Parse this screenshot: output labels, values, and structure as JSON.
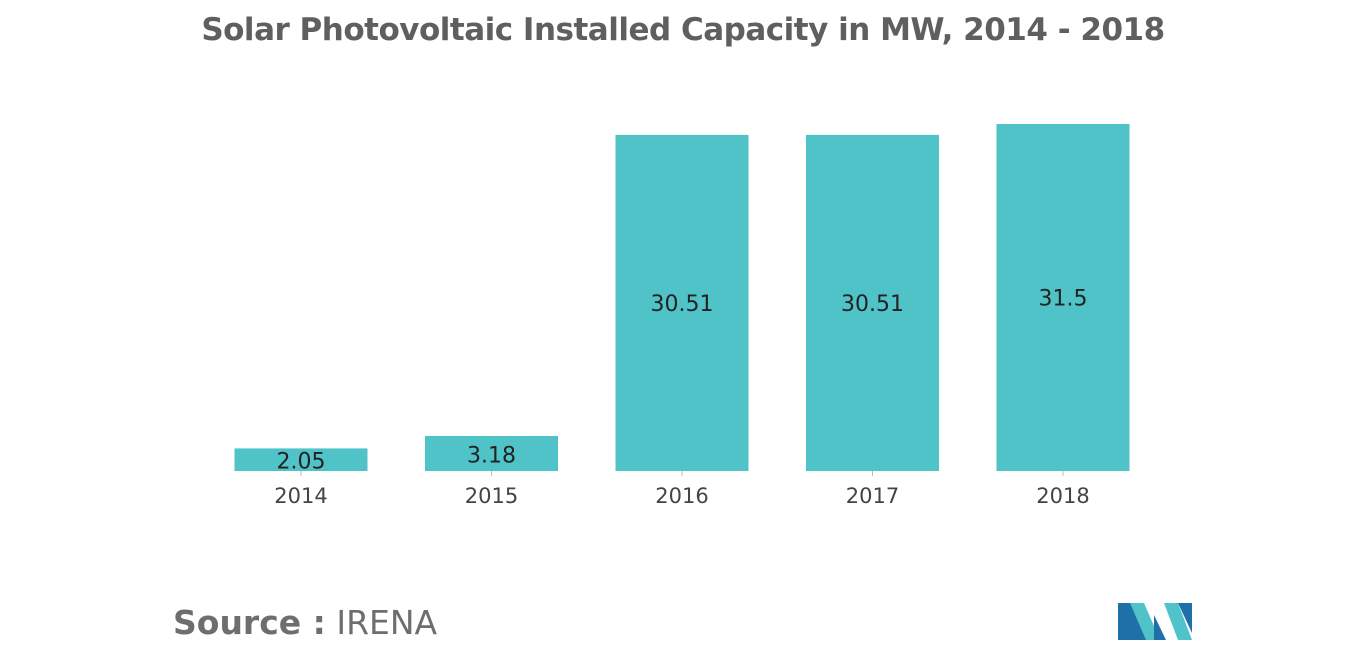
{
  "title": "Solar Photovoltaic Installed Capacity in MW, 2014 - 2018",
  "source": {
    "label": "Source :",
    "name": "IRENA"
  },
  "logo": {
    "icon": "mordor-intelligence-logo-icon",
    "colors": [
      "#1f6fa8",
      "#4fc3c9"
    ]
  },
  "chart_data": {
    "type": "bar",
    "title": "Solar Photovoltaic Installed Capacity in MW, 2014 - 2018",
    "categories": [
      "2014",
      "2015",
      "2016",
      "2017",
      "2018"
    ],
    "values": [
      2.05,
      3.18,
      30.51,
      30.51,
      31.5
    ],
    "data_labels": [
      "2.05",
      "3.18",
      "30.51",
      "30.51",
      "31.5"
    ],
    "xlabel": "",
    "ylabel": "",
    "ylim": [
      0,
      31.5
    ],
    "grid": false,
    "legend": "none",
    "bar_color": "#50c3c9",
    "label_color": "#222222",
    "tick_color": "#444444"
  }
}
